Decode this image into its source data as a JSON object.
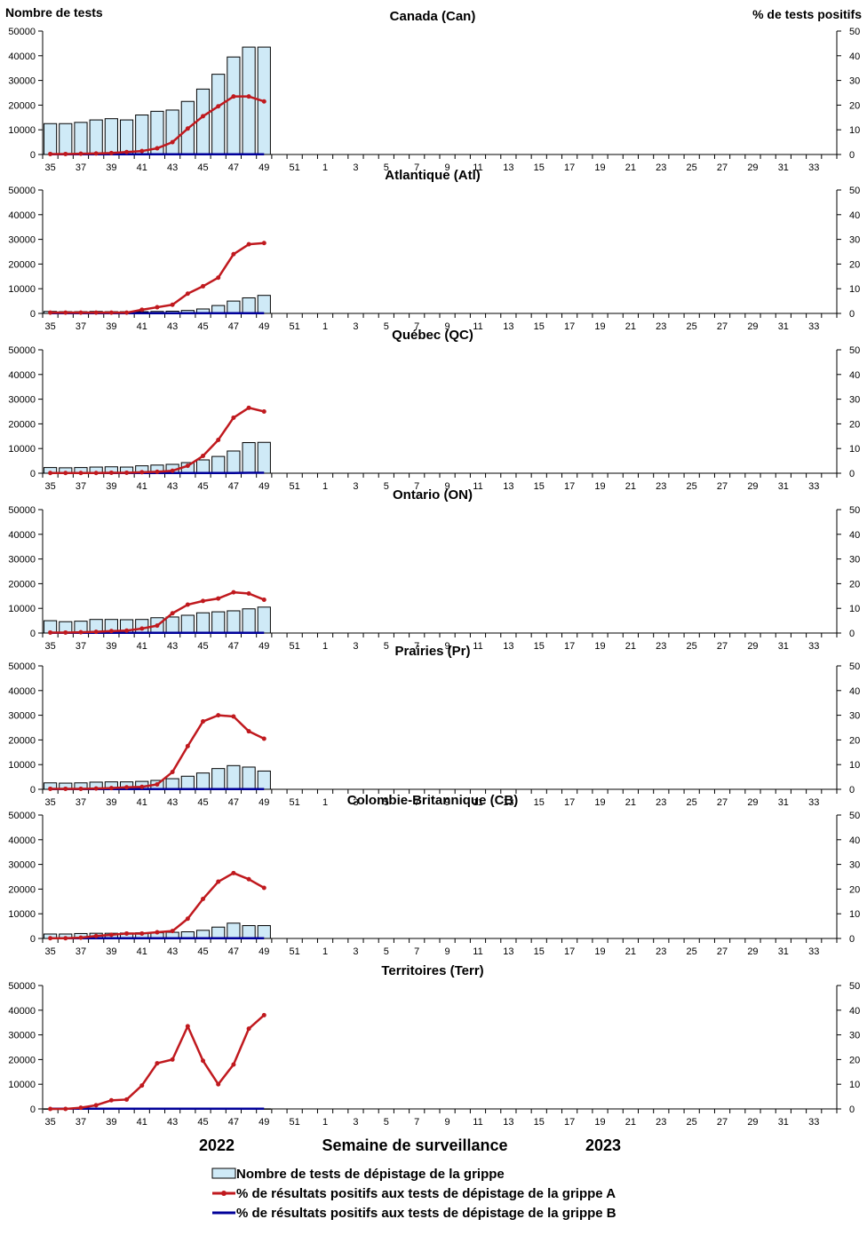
{
  "figure": {
    "left_axis_title": "Nombre de tests",
    "right_axis_title": "% de tests positifs",
    "x_axis_title": "Semaine de surveillance",
    "year_labels": [
      "2022",
      "2023"
    ]
  },
  "colors": {
    "bar_fill": "#cfeaf7",
    "bar_stroke": "#000000",
    "flu_a": "#c0191e",
    "flu_b": "#000099"
  },
  "legend": {
    "tests": "Nombre de tests de dépistage de la grippe",
    "flu_a": "% de résultats positifs aux tests de dépistage de la grippe A",
    "flu_b": "% de résultats positifs aux tests de dépistage de la grippe B"
  },
  "chart_data": [
    {
      "type": "bar+line",
      "title": "Canada (Can)",
      "weeks": [
        35,
        36,
        37,
        38,
        39,
        40,
        41,
        42,
        43,
        44,
        45,
        46,
        47,
        48,
        49,
        50,
        51,
        52,
        1,
        2,
        3,
        4,
        5,
        6,
        7,
        8,
        9,
        10,
        11,
        12,
        13,
        14,
        15,
        16,
        17,
        18,
        19,
        20,
        21,
        22,
        23,
        24,
        25,
        26,
        27,
        28,
        29,
        30,
        31,
        32,
        33,
        34
      ],
      "tick_labels": [
        "35",
        "37",
        "39",
        "41",
        "43",
        "45",
        "47",
        "49",
        "51",
        "1",
        "3",
        "5",
        "7",
        "9",
        "11",
        "13",
        "15",
        "17",
        "19",
        "21",
        "23",
        "25",
        "27",
        "29",
        "31",
        "33"
      ],
      "y_left_ticks": [
        "0",
        "10000",
        "20000",
        "30000",
        "40000",
        "50000"
      ],
      "y_right_ticks": [
        "0",
        "10",
        "20",
        "30",
        "40",
        "50"
      ],
      "ylim_left": [
        0,
        50000
      ],
      "ylim_right": [
        0,
        50
      ],
      "tests": [
        12500,
        12500,
        13000,
        14000,
        14500,
        14000,
        16000,
        17500,
        18000,
        21500,
        26500,
        32500,
        39500,
        43500,
        43500
      ],
      "pct_a": [
        0.2,
        0.2,
        0.3,
        0.4,
        0.6,
        1.0,
        1.4,
        2.5,
        5.0,
        10.5,
        15.5,
        19.5,
        23.5,
        23.5,
        21.5
      ],
      "pct_b": [
        0.1,
        0.1,
        0.1,
        0.1,
        0.1,
        0.1,
        0.1,
        0.1,
        0.1,
        0.1,
        0.1,
        0.1,
        0.1,
        0.1,
        0.1
      ]
    },
    {
      "type": "bar+line",
      "title": "Atlantique (Atl)",
      "weeks": [
        35,
        36,
        37,
        38,
        39,
        40,
        41,
        42,
        43,
        44,
        45,
        46,
        47,
        48,
        49,
        50,
        51,
        52,
        1,
        2,
        3,
        4,
        5,
        6,
        7,
        8,
        9,
        10,
        11,
        12,
        13,
        14,
        15,
        16,
        17,
        18,
        19,
        20,
        21,
        22,
        23,
        24,
        25,
        26,
        27,
        28,
        29,
        30,
        31,
        32,
        33,
        34
      ],
      "tick_labels": [
        "35",
        "37",
        "39",
        "41",
        "43",
        "45",
        "47",
        "49",
        "51",
        "1",
        "3",
        "5",
        "7",
        "9",
        "11",
        "13",
        "15",
        "17",
        "19",
        "21",
        "23",
        "25",
        "27",
        "29",
        "31",
        "33"
      ],
      "y_left_ticks": [
        "0",
        "10000",
        "20000",
        "30000",
        "40000",
        "50000"
      ],
      "y_right_ticks": [
        "0",
        "10",
        "20",
        "30",
        "40",
        "50"
      ],
      "ylim_left": [
        0,
        50000
      ],
      "ylim_right": [
        0,
        50
      ],
      "tests": [
        800,
        700,
        700,
        800,
        700,
        700,
        700,
        800,
        900,
        1200,
        1800,
        3200,
        5000,
        6300,
        7300
      ],
      "pct_a": [
        0.3,
        0.3,
        0.3,
        0.3,
        0.3,
        0.3,
        1.5,
        2.5,
        3.5,
        8.0,
        11.0,
        14.5,
        24.0,
        28.0,
        28.5
      ],
      "pct_b": [
        0.1,
        0.1,
        0.1,
        0.1,
        0.1,
        0.1,
        0.1,
        0.1,
        0.1,
        0.1,
        0.1,
        0.1,
        0.1,
        0.1,
        0.1
      ]
    },
    {
      "type": "bar+line",
      "title": "Québec (QC)",
      "weeks": [
        35,
        36,
        37,
        38,
        39,
        40,
        41,
        42,
        43,
        44,
        45,
        46,
        47,
        48,
        49,
        50,
        51,
        52,
        1,
        2,
        3,
        4,
        5,
        6,
        7,
        8,
        9,
        10,
        11,
        12,
        13,
        14,
        15,
        16,
        17,
        18,
        19,
        20,
        21,
        22,
        23,
        24,
        25,
        26,
        27,
        28,
        29,
        30,
        31,
        32,
        33,
        34
      ],
      "tick_labels": [
        "35",
        "37",
        "39",
        "41",
        "43",
        "45",
        "47",
        "49",
        "51",
        "1",
        "3",
        "5",
        "7",
        "9",
        "11",
        "13",
        "15",
        "17",
        "19",
        "21",
        "23",
        "25",
        "27",
        "29",
        "31",
        "33"
      ],
      "y_left_ticks": [
        "0",
        "10000",
        "20000",
        "30000",
        "40000",
        "50000"
      ],
      "y_right_ticks": [
        "0",
        "10",
        "20",
        "30",
        "40",
        "50"
      ],
      "ylim_left": [
        0,
        50000
      ],
      "ylim_right": [
        0,
        50
      ],
      "tests": [
        2300,
        2200,
        2300,
        2500,
        2600,
        2500,
        3000,
        3300,
        3600,
        4300,
        5400,
        6800,
        9000,
        12400,
        12500
      ],
      "pct_a": [
        0.1,
        0.1,
        0.1,
        0.1,
        0.2,
        0.2,
        0.4,
        0.6,
        1.0,
        3.0,
        7.0,
        13.5,
        22.5,
        26.5,
        25.0
      ],
      "pct_b": [
        0.1,
        0.1,
        0.1,
        0.1,
        0.1,
        0.1,
        0.1,
        0.1,
        0.1,
        0.1,
        0.1,
        0.1,
        0.1,
        0.2,
        0.2
      ]
    },
    {
      "type": "bar+line",
      "title": "Ontario (ON)",
      "weeks": [
        35,
        36,
        37,
        38,
        39,
        40,
        41,
        42,
        43,
        44,
        45,
        46,
        47,
        48,
        49,
        50,
        51,
        52,
        1,
        2,
        3,
        4,
        5,
        6,
        7,
        8,
        9,
        10,
        11,
        12,
        13,
        14,
        15,
        16,
        17,
        18,
        19,
        20,
        21,
        22,
        23,
        24,
        25,
        26,
        27,
        28,
        29,
        30,
        31,
        32,
        33,
        34
      ],
      "tick_labels": [
        "35",
        "37",
        "39",
        "41",
        "43",
        "45",
        "47",
        "49",
        "51",
        "1",
        "3",
        "5",
        "7",
        "9",
        "11",
        "13",
        "15",
        "17",
        "19",
        "21",
        "23",
        "25",
        "27",
        "29",
        "31",
        "33"
      ],
      "y_left_ticks": [
        "0",
        "10000",
        "20000",
        "30000",
        "40000",
        "50000"
      ],
      "y_right_ticks": [
        "0",
        "10",
        "20",
        "30",
        "40",
        "50"
      ],
      "ylim_left": [
        0,
        50000
      ],
      "ylim_right": [
        0,
        50
      ],
      "tests": [
        5000,
        4600,
        4800,
        5500,
        5500,
        5400,
        5500,
        6200,
        6500,
        7200,
        8200,
        8600,
        9000,
        9800,
        10500
      ],
      "pct_a": [
        0.2,
        0.2,
        0.3,
        0.5,
        0.8,
        1.0,
        1.8,
        3.0,
        8.0,
        11.5,
        13.0,
        14.0,
        16.5,
        16.0,
        13.5
      ],
      "pct_b": [
        0.1,
        0.1,
        0.1,
        0.1,
        0.1,
        0.1,
        0.1,
        0.1,
        0.1,
        0.1,
        0.1,
        0.1,
        0.1,
        0.1,
        0.1
      ]
    },
    {
      "type": "bar+line",
      "title": "Prairies (Pr)",
      "weeks": [
        35,
        36,
        37,
        38,
        39,
        40,
        41,
        42,
        43,
        44,
        45,
        46,
        47,
        48,
        49,
        50,
        51,
        52,
        1,
        2,
        3,
        4,
        5,
        6,
        7,
        8,
        9,
        10,
        11,
        12,
        13,
        14,
        15,
        16,
        17,
        18,
        19,
        20,
        21,
        22,
        23,
        24,
        25,
        26,
        27,
        28,
        29,
        30,
        31,
        32,
        33,
        34
      ],
      "tick_labels": [
        "35",
        "37",
        "39",
        "41",
        "43",
        "45",
        "47",
        "49",
        "51",
        "1",
        "3",
        "5",
        "7",
        "9",
        "11",
        "13",
        "15",
        "17",
        "19",
        "21",
        "23",
        "25",
        "27",
        "29",
        "31",
        "33"
      ],
      "y_left_ticks": [
        "0",
        "10000",
        "20000",
        "30000",
        "40000",
        "50000"
      ],
      "y_right_ticks": [
        "0",
        "10",
        "20",
        "30",
        "40",
        "50"
      ],
      "ylim_left": [
        0,
        50000
      ],
      "ylim_right": [
        0,
        50
      ],
      "tests": [
        2600,
        2500,
        2600,
        2900,
        3000,
        3000,
        3200,
        3600,
        4300,
        5300,
        6600,
        8400,
        9600,
        9000,
        7400
      ],
      "pct_a": [
        0.2,
        0.2,
        0.2,
        0.3,
        0.5,
        0.8,
        1.0,
        2.0,
        7.0,
        17.5,
        27.5,
        30.0,
        29.5,
        23.5,
        20.5
      ],
      "pct_b": [
        0.1,
        0.1,
        0.1,
        0.1,
        0.1,
        0.1,
        0.1,
        0.1,
        0.1,
        0.1,
        0.1,
        0.1,
        0.1,
        0.1,
        0.1
      ]
    },
    {
      "type": "bar+line",
      "title": "Colombie-Britannique (CB)",
      "weeks": [
        35,
        36,
        37,
        38,
        39,
        40,
        41,
        42,
        43,
        44,
        45,
        46,
        47,
        48,
        49,
        50,
        51,
        52,
        1,
        2,
        3,
        4,
        5,
        6,
        7,
        8,
        9,
        10,
        11,
        12,
        13,
        14,
        15,
        16,
        17,
        18,
        19,
        20,
        21,
        22,
        23,
        24,
        25,
        26,
        27,
        28,
        29,
        30,
        31,
        32,
        33,
        34
      ],
      "tick_labels": [
        "35",
        "37",
        "39",
        "41",
        "43",
        "45",
        "47",
        "49",
        "51",
        "1",
        "3",
        "5",
        "7",
        "9",
        "11",
        "13",
        "15",
        "17",
        "19",
        "21",
        "23",
        "25",
        "27",
        "29",
        "31",
        "33"
      ],
      "y_left_ticks": [
        "0",
        "10000",
        "20000",
        "30000",
        "40000",
        "50000"
      ],
      "y_right_ticks": [
        "0",
        "10",
        "20",
        "30",
        "40",
        "50"
      ],
      "ylim_left": [
        0,
        50000
      ],
      "ylim_right": [
        0,
        50
      ],
      "tests": [
        1800,
        1800,
        2000,
        2100,
        2100,
        2200,
        2300,
        2300,
        2500,
        2700,
        3300,
        4600,
        6200,
        5200,
        5200
      ],
      "pct_a": [
        0.1,
        0.1,
        0.3,
        1.0,
        1.5,
        2.0,
        2.0,
        2.5,
        3.0,
        8.0,
        16.0,
        23.0,
        26.5,
        24.0,
        20.5
      ],
      "pct_b": [
        0.1,
        0.1,
        0.1,
        0.1,
        0.1,
        0.1,
        0.1,
        0.1,
        0.1,
        0.1,
        0.1,
        0.1,
        0.1,
        0.1,
        0.1
      ]
    },
    {
      "type": "bar+line",
      "title": "Territoires (Terr)",
      "weeks": [
        35,
        36,
        37,
        38,
        39,
        40,
        41,
        42,
        43,
        44,
        45,
        46,
        47,
        48,
        49,
        50,
        51,
        52,
        1,
        2,
        3,
        4,
        5,
        6,
        7,
        8,
        9,
        10,
        11,
        12,
        13,
        14,
        15,
        16,
        17,
        18,
        19,
        20,
        21,
        22,
        23,
        24,
        25,
        26,
        27,
        28,
        29,
        30,
        31,
        32,
        33,
        34
      ],
      "tick_labels": [
        "35",
        "37",
        "39",
        "41",
        "43",
        "45",
        "47",
        "49",
        "51",
        "1",
        "3",
        "5",
        "7",
        "9",
        "11",
        "13",
        "15",
        "17",
        "19",
        "21",
        "23",
        "25",
        "27",
        "29",
        "31",
        "33"
      ],
      "y_left_ticks": [
        "0",
        "10000",
        "20000",
        "30000",
        "40000",
        "50000"
      ],
      "y_right_ticks": [
        "0",
        "10",
        "20",
        "30",
        "40",
        "50"
      ],
      "ylim_left": [
        0,
        50000
      ],
      "ylim_right": [
        0,
        50
      ],
      "tests": [
        50,
        50,
        50,
        50,
        50,
        50,
        50,
        50,
        50,
        50,
        50,
        50,
        50,
        50,
        50
      ],
      "pct_a": [
        0.0,
        0.0,
        0.5,
        1.5,
        3.5,
        3.8,
        9.5,
        18.5,
        20.0,
        33.5,
        19.5,
        10.0,
        18.0,
        32.5,
        38.0
      ],
      "pct_b": [
        0.1,
        0.1,
        0.1,
        0.1,
        0.1,
        0.1,
        0.1,
        0.1,
        0.1,
        0.1,
        0.1,
        0.1,
        0.1,
        0.1,
        0.1
      ]
    }
  ]
}
